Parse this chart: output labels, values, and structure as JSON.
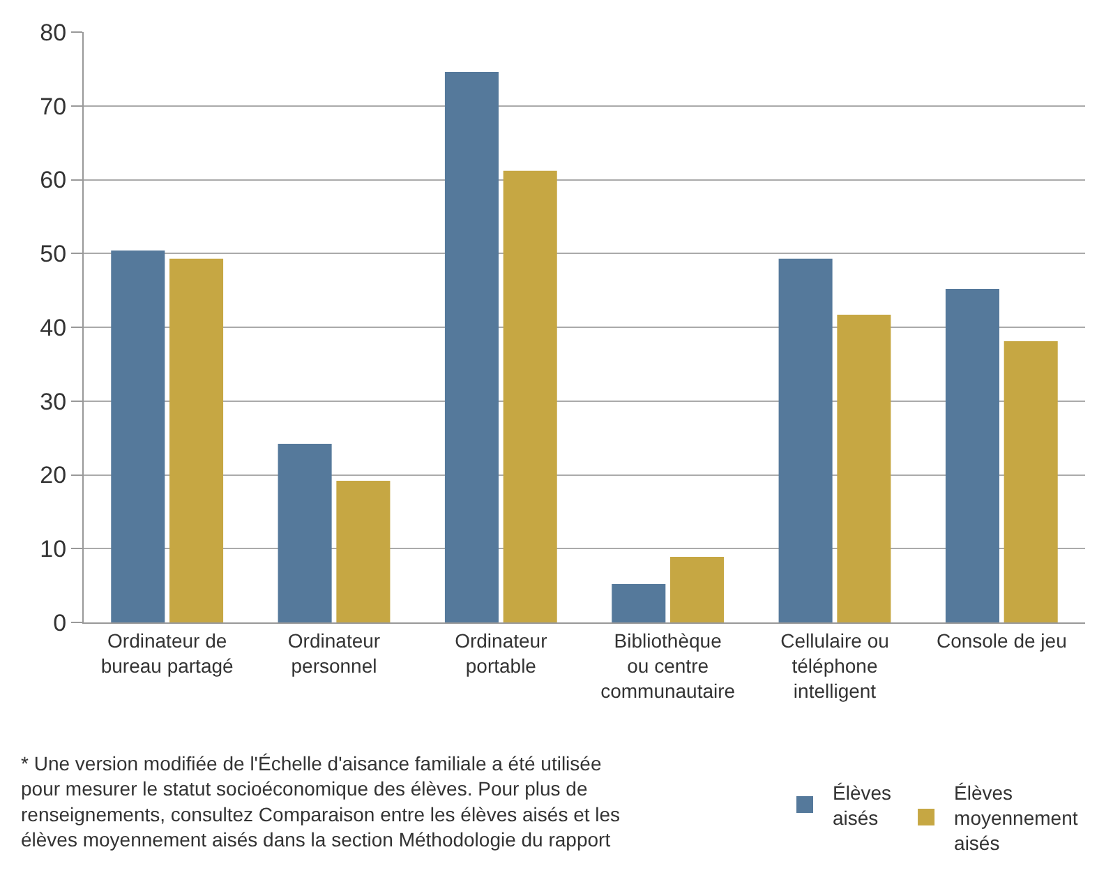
{
  "chart_data": {
    "type": "bar",
    "categories": [
      "Ordinateur de bureau partagé",
      "Ordinateur personnel",
      "Ordinateur portable",
      "Bibliothèque ou centre communautaire",
      "Cellulaire ou téléphone intelligent",
      "Console de jeu"
    ],
    "series": [
      {
        "name": "Élèves aisés",
        "color": "#55799b",
        "values": [
          50.4,
          24.2,
          74.6,
          5.2,
          49.3,
          45.2
        ]
      },
      {
        "name": "Élèves moyennement aisés",
        "color": "#c6a743",
        "values": [
          49.3,
          19.2,
          61.2,
          8.9,
          41.7,
          38.1
        ]
      }
    ],
    "ylim": [
      0,
      80
    ],
    "yticks": [
      0,
      10,
      20,
      30,
      40,
      50,
      60,
      70,
      80
    ],
    "grid": "y",
    "legend": "bottom right",
    "annotations": [
      "* Une version modifiée de l'Échelle d'aisance familiale a été utilisée pour mesurer le statut socioéconomique des élèves. Pour plus de renseignements, consultez Comparaison entre les élèves aisés et les élèves moyennement aisés dans la section Méthodologie du rapport"
    ]
  }
}
